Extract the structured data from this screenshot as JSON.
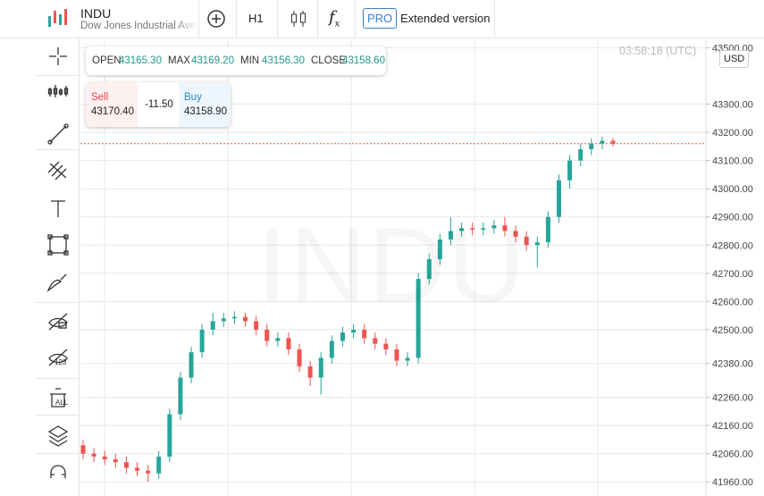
{
  "header": {
    "symbol": "INDU",
    "name": "Dow Jones Industrial Average",
    "interval": "H1",
    "pro": "PRO",
    "extended": "Extended version"
  },
  "ohlc_bar": {
    "open_label": "OPEN",
    "open": "43165.30",
    "max_label": "MAX",
    "max": "43169.20",
    "min_label": "MIN",
    "min": "43156.30",
    "close_label": "CLOSE",
    "close": "43158.60"
  },
  "trade": {
    "sell_label": "Sell",
    "sell_price": "43170.40",
    "change": "-11.50",
    "buy_label": "Buy",
    "buy_price": "43158.90"
  },
  "timestamp": "03:58:18 (UTC)",
  "currency": "USD",
  "watermark": "INDU",
  "chart_data": {
    "type": "candlestick",
    "up_color": "#26a69a",
    "down_color": "#ef5350",
    "grid": true,
    "ylim": [
      41910,
      43530
    ],
    "yticks": [
      {
        "value": 43500,
        "label": "43500.00"
      },
      {
        "value": 43300,
        "label": "43300.00"
      },
      {
        "value": 43200,
        "label": "43200.00"
      },
      {
        "value": 43100,
        "label": "43100.00"
      },
      {
        "value": 43000,
        "label": "43000.00"
      },
      {
        "value": 42900,
        "label": "42900.00"
      },
      {
        "value": 42800,
        "label": "42800.00"
      },
      {
        "value": 42700,
        "label": "42700.00"
      },
      {
        "value": 42600,
        "label": "42600.00"
      },
      {
        "value": 42500,
        "label": "42500.00"
      },
      {
        "value": 42380,
        "label": "42380.00"
      },
      {
        "value": 42260,
        "label": "42260.00"
      },
      {
        "value": 42160,
        "label": "42160.00"
      },
      {
        "value": 42060,
        "label": "42060.00"
      },
      {
        "value": 41960,
        "label": "41960.00"
      }
    ],
    "open": [
      42090,
      42060,
      42050,
      42040,
      42030,
      42010,
      42000,
      41990,
      42050,
      42200,
      42330,
      42420,
      42500,
      42530,
      42540,
      42545,
      42530,
      42500,
      42460,
      42470,
      42430,
      42370,
      42330,
      42400,
      42460,
      42490,
      42500,
      42470,
      42450,
      42430,
      42390,
      42400,
      42680,
      42750,
      42820,
      42850,
      42860,
      42855,
      42860,
      42870,
      42850,
      42830,
      42800,
      42810,
      42900,
      43030,
      43100,
      43140,
      43160,
      43170
    ],
    "high": [
      42110,
      42080,
      42070,
      42060,
      42050,
      42030,
      42020,
      42070,
      42220,
      42350,
      42440,
      42520,
      42560,
      42560,
      42565,
      42560,
      42550,
      42520,
      42490,
      42490,
      42450,
      42390,
      42420,
      42480,
      42510,
      42520,
      42520,
      42490,
      42470,
      42450,
      42420,
      42700,
      42770,
      42840,
      42900,
      42880,
      42880,
      42880,
      42890,
      42900,
      42870,
      42850,
      42830,
      42920,
      43050,
      43120,
      43160,
      43180,
      43185,
      43180
    ],
    "low": [
      42040,
      42030,
      42020,
      42010,
      41990,
      41980,
      41960,
      41970,
      42030,
      42180,
      42310,
      42400,
      42480,
      42510,
      42520,
      42510,
      42480,
      42440,
      42440,
      42410,
      42350,
      42300,
      42270,
      42380,
      42440,
      42470,
      42450,
      42430,
      42410,
      42370,
      42370,
      42380,
      42660,
      42730,
      42800,
      42830,
      42835,
      42835,
      42840,
      42830,
      42810,
      42780,
      42720,
      42790,
      42880,
      43000,
      43080,
      43120,
      43140,
      43150
    ],
    "close": [
      42060,
      42050,
      42040,
      42030,
      42010,
      42000,
      41990,
      42050,
      42200,
      42330,
      42420,
      42500,
      42530,
      42540,
      42545,
      42530,
      42500,
      42460,
      42470,
      42430,
      42370,
      42330,
      42400,
      42460,
      42490,
      42500,
      42470,
      42450,
      42430,
      42390,
      42400,
      42680,
      42750,
      42820,
      42850,
      42860,
      42855,
      42860,
      42870,
      42850,
      42830,
      42800,
      42810,
      42900,
      43030,
      43100,
      43140,
      43160,
      43170,
      43160
    ]
  }
}
